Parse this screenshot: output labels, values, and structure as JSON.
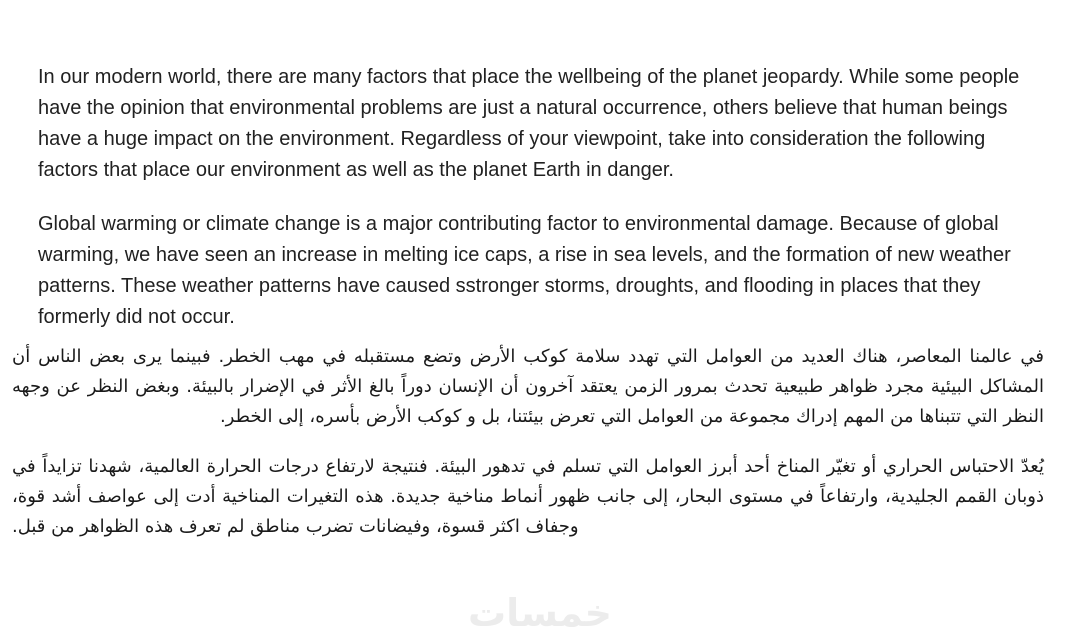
{
  "document": {
    "paragraphs": [
      {
        "id": "english-paragraph-1",
        "lang": "en",
        "dir": "ltr",
        "text": "In our modern world, there are many factors that place the wellbeing of the planet jeopardy. While some people have the opinion that environmental problems are just a natural occurrence, others believe that human beings have a huge impact on the environment. Regardless of your viewpoint, take into consideration the following factors that place our environment as well as the planet Earth in danger."
      },
      {
        "id": "english-paragraph-2",
        "lang": "en",
        "dir": "ltr",
        "text": "Global warming or climate change is a major contributing factor to environmental damage. Because of global warming, we have seen an increase in melting ice caps, a rise in sea levels, and the formation of new weather patterns. These weather patterns have caused sstronger storms, droughts, and flooding in places that they formerly did not occur."
      },
      {
        "id": "arabic-paragraph-1",
        "lang": "ar",
        "dir": "rtl",
        "text": "في عالمنا المعاصر، هناك العديد من العوامل التي تهدد سلامة كوكب الأرض وتضع مستقبله في مهب الخطر. فبينما يرى بعض الناس أن المشاكل البيئية مجرد ظواهر طبيعية تحدث بمرور الزمن يعتقد آخرون أن الإنسان دوراً بالغ الأثر في الإضرار بالبيئة. وبغض النظر عن وجهه النظر التي تتبناها من المهم إدراك مجموعة من العوامل التي تعرض بيئتنا، بل و كوكب الأرض بأسره، إلى الخطر."
      },
      {
        "id": "arabic-paragraph-2",
        "lang": "ar",
        "dir": "rtl",
        "text": "يُعدّ الاحتباس الحراري أو تغيّر المناخ أحد أبرز العوامل التي تسلم في تدهور البيئة. فنتيجة لارتفاع درجات الحرارة العالمية، شهدنا تزايداً في ذوبان القمم الجليدية، وارتفاعاً في مستوى البحار، إلى جانب ظهور أنماط مناخية جديدة. هذه التغيرات المناخية أدت إلى عواصف أشد قوة، وجفاف اكثر قسوة، وفيضانات تضرب مناطق لم تعرف هذه الظواهر من قبل."
      }
    ],
    "watermark": {
      "text": "خمسات"
    }
  },
  "colors": {
    "background": "#ffffff",
    "english_text": "#212121",
    "arabic_text": "#1a1a1a",
    "watermark": "#ececec"
  }
}
